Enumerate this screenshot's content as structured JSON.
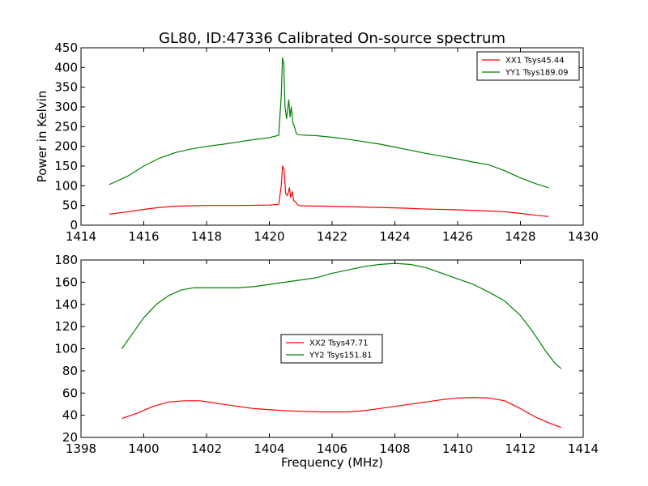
{
  "title": "GL80, ID:47336 Calibrated On-source spectrum",
  "colors": {
    "xx": "#ff0000",
    "yy": "#008000"
  },
  "chart_data": [
    {
      "type": "line",
      "title": "GL80, ID:47336 Calibrated On-source spectrum",
      "xlabel": "",
      "ylabel": "Power in Kelvin",
      "xlim": [
        1414,
        1430
      ],
      "ylim": [
        0,
        450
      ],
      "xticks": [
        1414,
        1416,
        1418,
        1420,
        1422,
        1424,
        1426,
        1428,
        1430
      ],
      "yticks": [
        0,
        50,
        100,
        150,
        200,
        250,
        300,
        350,
        400,
        450
      ],
      "legend": "top-right",
      "series": [
        {
          "name": "XX1 Tsys45.44",
          "color": "#ff0000",
          "x": [
            1414.9,
            1415.5,
            1416,
            1416.5,
            1417,
            1417.5,
            1418,
            1419,
            1420,
            1420.3,
            1420.38,
            1420.42,
            1420.47,
            1420.52,
            1420.58,
            1420.64,
            1420.68,
            1420.73,
            1420.78,
            1420.83,
            1420.9,
            1421,
            1422,
            1423,
            1424,
            1425,
            1426,
            1427,
            1427.5,
            1428,
            1428.5,
            1428.9
          ],
          "y": [
            28,
            34,
            40,
            45,
            48,
            49,
            50,
            50,
            51,
            53,
            100,
            150,
            140,
            80,
            75,
            95,
            70,
            85,
            62,
            60,
            52,
            49,
            48,
            46,
            44,
            41,
            39,
            36,
            34,
            30,
            25,
            22
          ]
        },
        {
          "name": "YY1 Tsys189.09",
          "color": "#008000",
          "x": [
            1414.9,
            1415.5,
            1416,
            1416.5,
            1417,
            1417.5,
            1418,
            1418.5,
            1419,
            1419.5,
            1420,
            1420.3,
            1420.38,
            1420.42,
            1420.46,
            1420.5,
            1420.55,
            1420.62,
            1420.66,
            1420.7,
            1420.75,
            1420.8,
            1420.85,
            1420.9,
            1421,
            1421.5,
            1422,
            1422.5,
            1423,
            1423.5,
            1424,
            1424.5,
            1425,
            1425.5,
            1426,
            1426.5,
            1427,
            1427.5,
            1428,
            1428.5,
            1428.9
          ],
          "y": [
            103,
            125,
            150,
            170,
            184,
            193,
            200,
            205,
            211,
            217,
            222,
            228,
            330,
            425,
            410,
            300,
            270,
            318,
            275,
            300,
            260,
            250,
            235,
            230,
            229,
            227,
            223,
            218,
            212,
            206,
            198,
            190,
            182,
            175,
            168,
            160,
            153,
            138,
            120,
            105,
            95
          ]
        }
      ]
    },
    {
      "type": "line",
      "title": "",
      "xlabel": "Frequency (MHz)",
      "ylabel": "",
      "xlim": [
        1398,
        1414
      ],
      "ylim": [
        20,
        180
      ],
      "xticks": [
        1398,
        1400,
        1402,
        1404,
        1406,
        1408,
        1410,
        1412,
        1414
      ],
      "yticks": [
        20,
        40,
        60,
        80,
        100,
        120,
        140,
        160,
        180
      ],
      "legend": "center",
      "series": [
        {
          "name": "XX2 Tsys47.71",
          "color": "#ff0000",
          "x": [
            1399.3,
            1399.8,
            1400.3,
            1400.8,
            1401.3,
            1401.8,
            1402.5,
            1403,
            1403.5,
            1404,
            1404.5,
            1405,
            1405.5,
            1406,
            1406.5,
            1407,
            1407.5,
            1408,
            1408.5,
            1409,
            1409.5,
            1410,
            1410.5,
            1411,
            1411.5,
            1412,
            1412.5,
            1413,
            1413.3
          ],
          "y": [
            37,
            42,
            48,
            52,
            53,
            53,
            50,
            48,
            46,
            45,
            44,
            43.5,
            43,
            43,
            43,
            44,
            46,
            48,
            50,
            52,
            54,
            55.5,
            56,
            55.5,
            53,
            46,
            38,
            32,
            29
          ]
        },
        {
          "name": "YY2 Tsys151.81",
          "color": "#008000",
          "x": [
            1399.3,
            1399.6,
            1400,
            1400.4,
            1400.8,
            1401.2,
            1401.6,
            1402,
            1402.5,
            1403,
            1403.5,
            1404,
            1404.5,
            1405,
            1405.5,
            1406,
            1406.5,
            1407,
            1407.5,
            1408,
            1408.5,
            1409,
            1409.5,
            1410,
            1410.5,
            1411,
            1411.5,
            1412,
            1412.4,
            1412.8,
            1413.1,
            1413.3
          ],
          "y": [
            100,
            112,
            128,
            140,
            148,
            153,
            155,
            155,
            155,
            155,
            156,
            158,
            160,
            162,
            164,
            168,
            171,
            174,
            176,
            177,
            176,
            173,
            168,
            163,
            158,
            151,
            143,
            130,
            115,
            98,
            87,
            82
          ]
        }
      ]
    }
  ]
}
